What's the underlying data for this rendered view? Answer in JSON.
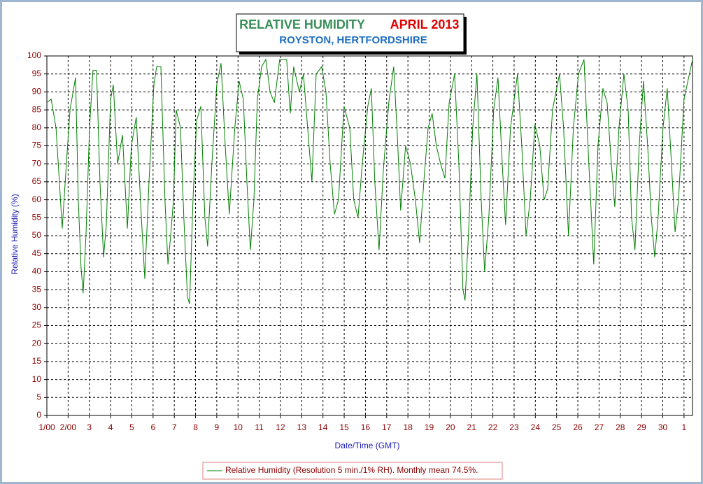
{
  "chart_data": {
    "type": "line",
    "title": "RELATIVE HUMIDITY",
    "period": "APRIL 2013",
    "subtitle": "ROYSTON, HERTFORDSHIRE",
    "xlabel": "Date/Time (GMT)",
    "ylabel": "Relative Humidity (%)",
    "xlim": [
      1,
      31.4
    ],
    "ylim": [
      0,
      100
    ],
    "xticks": [
      {
        "value": 1,
        "label": "1/00"
      },
      {
        "value": 2,
        "label": "2/00"
      },
      3,
      4,
      5,
      6,
      7,
      8,
      9,
      10,
      11,
      12,
      13,
      14,
      15,
      16,
      17,
      18,
      19,
      20,
      21,
      22,
      23,
      24,
      25,
      26,
      27,
      28,
      29,
      30,
      {
        "value": 31,
        "label": "1"
      }
    ],
    "yticks": [
      0,
      5,
      10,
      15,
      20,
      25,
      30,
      35,
      40,
      45,
      50,
      55,
      60,
      65,
      70,
      75,
      80,
      85,
      90,
      95,
      100
    ],
    "grid": true,
    "x": [
      1.0,
      1.2,
      1.43,
      1.59,
      1.72,
      1.92,
      2.09,
      2.35,
      2.48,
      2.61,
      2.71,
      2.84,
      3.01,
      3.17,
      3.34,
      3.5,
      3.67,
      3.8,
      4.0,
      4.13,
      4.33,
      4.56,
      4.79,
      4.98,
      5.21,
      5.45,
      5.61,
      5.81,
      6.04,
      6.17,
      6.37,
      6.56,
      6.7,
      6.83,
      6.96,
      7.09,
      7.29,
      7.45,
      7.62,
      7.72,
      7.88,
      8.05,
      8.25,
      8.44,
      8.57,
      8.77,
      9.0,
      9.2,
      9.4,
      9.59,
      9.85,
      10.05,
      10.25,
      10.42,
      10.58,
      10.75,
      10.91,
      11.11,
      11.31,
      11.51,
      11.71,
      11.96,
      12.29,
      12.46,
      12.62,
      12.89,
      13.08,
      13.28,
      13.48,
      13.68,
      13.94,
      14.14,
      14.34,
      14.54,
      14.73,
      14.99,
      15.26,
      15.45,
      15.65,
      15.85,
      16.11,
      16.28,
      16.44,
      16.64,
      16.84,
      17.1,
      17.33,
      17.5,
      17.66,
      17.89,
      18.12,
      18.35,
      18.55,
      18.75,
      18.95,
      19.14,
      19.34,
      19.54,
      19.74,
      19.94,
      20.2,
      20.4,
      20.59,
      20.69,
      20.85,
      21.05,
      21.25,
      21.45,
      21.61,
      21.81,
      22.04,
      22.24,
      22.44,
      22.6,
      22.83,
      23.16,
      23.36,
      23.56,
      23.76,
      23.98,
      24.21,
      24.41,
      24.58,
      24.81,
      25.14,
      25.33,
      25.56,
      25.79,
      26.03,
      26.29,
      26.52,
      26.75,
      26.95,
      27.18,
      27.38,
      27.58,
      27.74,
      27.94,
      28.17,
      28.37,
      28.53,
      28.69,
      28.89,
      29.09,
      29.29,
      29.46,
      29.62,
      29.78,
      30.01,
      30.21,
      30.41,
      30.58,
      30.74,
      31.0,
      31.4
    ],
    "series": [
      {
        "name": "Relative Humidity (Resolution 5 min./1% RH). Monthly mean 74.5%.",
        "color": "#008000",
        "values": [
          87,
          88,
          80,
          65,
          52,
          70,
          85,
          94,
          60,
          41,
          34,
          50,
          80,
          96,
          96,
          65,
          44,
          53,
          88,
          92,
          70,
          78,
          52,
          75,
          83,
          55,
          38,
          65,
          92,
          97,
          97,
          60,
          42,
          50,
          60,
          85,
          80,
          55,
          33,
          31,
          60,
          82,
          86,
          55,
          47,
          70,
          92,
          98,
          75,
          56,
          80,
          93,
          88,
          65,
          46,
          60,
          88,
          97,
          99,
          90,
          87,
          99,
          99,
          84,
          97,
          90,
          95,
          80,
          65,
          95,
          97,
          90,
          70,
          56,
          60,
          86,
          80,
          60,
          55,
          70,
          86,
          91,
          65,
          46,
          68,
          87,
          97,
          78,
          57,
          75,
          70,
          60,
          48,
          65,
          80,
          84,
          75,
          70,
          66,
          87,
          95,
          70,
          35,
          32,
          50,
          80,
          95,
          60,
          40,
          55,
          85,
          94,
          70,
          53,
          80,
          95,
          75,
          50,
          60,
          81,
          75,
          60,
          63,
          85,
          95,
          80,
          50,
          80,
          95,
          99,
          70,
          42,
          75,
          91,
          87,
          70,
          58,
          80,
          95,
          85,
          55,
          46,
          75,
          93,
          75,
          55,
          44,
          55,
          80,
          91,
          70,
          51,
          60,
          88,
          99
        ]
      }
    ]
  }
}
